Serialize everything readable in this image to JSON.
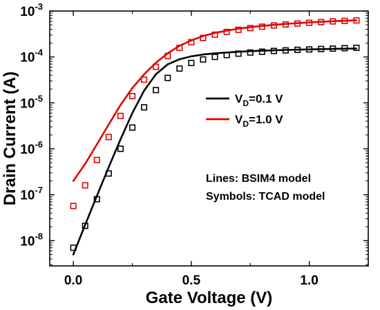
{
  "chart_data": {
    "type": "scatter",
    "xlabel": "Gate Voltage (V)",
    "ylabel": "Drain Current (A)",
    "xlim": [
      -0.1,
      1.25
    ],
    "ylim_log10": [
      -8.55,
      -3
    ],
    "y_scale": "log",
    "x_ticks": [
      0.0,
      0.5,
      1.0
    ],
    "x_tick_labels": [
      "0.0",
      "0.5",
      "1.0"
    ],
    "y_tick_exponents": [
      -8,
      -7,
      -6,
      -5,
      -4,
      -3
    ],
    "y_tick_base": "10",
    "legend_placement": "center-right",
    "legend": [
      {
        "prefix": "V",
        "sub": "D",
        "suffix": "=0.1 V",
        "color": "#000000"
      },
      {
        "prefix": "V",
        "sub": "D",
        "suffix": "=1.0 V",
        "color": "#e00000"
      }
    ],
    "annotations": [
      "Lines: BSIM4 model",
      "Symbols: TCAD model"
    ],
    "series": [
      {
        "color": "#000000",
        "marker": "square",
        "line_x": [
          0.0,
          0.05,
          0.1,
          0.15,
          0.2,
          0.25,
          0.3,
          0.35,
          0.4,
          0.45,
          0.5,
          0.55,
          0.6,
          0.7,
          0.8,
          0.9,
          1.0,
          1.1,
          1.2
        ],
        "line_y": [
          5e-09,
          2.2e-08,
          9.5e-08,
          4e-07,
          1.6e-06,
          6e-06,
          1.85e-05,
          4.2e-05,
          6.9e-05,
          8.9e-05,
          0.000103,
          0.000113,
          0.00012,
          0.00013,
          0.000137,
          0.000142,
          0.000146,
          0.00015,
          0.000153
        ],
        "points_x": [
          0.0,
          0.05,
          0.1,
          0.15,
          0.2,
          0.25,
          0.3,
          0.35,
          0.4,
          0.45,
          0.5,
          0.55,
          0.6,
          0.65,
          0.7,
          0.75,
          0.8,
          0.85,
          0.9,
          0.95,
          1.0,
          1.05,
          1.1,
          1.15,
          1.2
        ],
        "points_y": [
          7e-09,
          2.1e-08,
          8e-08,
          2.9e-07,
          1e-06,
          2.9e-06,
          8e-06,
          1.9e-05,
          3.5e-05,
          5.6e-05,
          7.4e-05,
          8.8e-05,
          0.0001,
          0.00011,
          0.000118,
          0.000125,
          0.00013,
          0.000135,
          0.000139,
          0.000143,
          0.000146,
          0.000149,
          0.000152,
          0.000155,
          0.000158
        ]
      },
      {
        "color": "#e00000",
        "marker": "square",
        "line_x": [
          0.0,
          0.05,
          0.1,
          0.15,
          0.2,
          0.25,
          0.3,
          0.35,
          0.4,
          0.45,
          0.5,
          0.55,
          0.6,
          0.7,
          0.8,
          0.9,
          1.0,
          1.1,
          1.2
        ],
        "line_y": [
          2e-07,
          4.7e-07,
          1.25e-06,
          3.4e-06,
          9e-06,
          2.1e-05,
          4.2e-05,
          7.5e-05,
          0.00012,
          0.000175,
          0.00023,
          0.000285,
          0.000335,
          0.000415,
          0.000475,
          0.000525,
          0.000565,
          0.0006,
          0.00063
        ],
        "points_x": [
          0.0,
          0.05,
          0.1,
          0.15,
          0.2,
          0.25,
          0.3,
          0.35,
          0.4,
          0.45,
          0.5,
          0.55,
          0.6,
          0.65,
          0.7,
          0.75,
          0.8,
          0.85,
          0.9,
          0.95,
          1.0,
          1.05,
          1.1,
          1.15,
          1.2
        ],
        "points_y": [
          5.7e-08,
          1.6e-07,
          5.7e-07,
          1.8e-06,
          5.2e-06,
          1.4e-05,
          3.2e-05,
          6.1e-05,
          0.000105,
          0.000158,
          0.00021,
          0.00026,
          0.000305,
          0.00035,
          0.00039,
          0.000425,
          0.000455,
          0.000485,
          0.00051,
          0.000535,
          0.000555,
          0.000575,
          0.000595,
          0.00061,
          0.000625
        ]
      }
    ]
  }
}
